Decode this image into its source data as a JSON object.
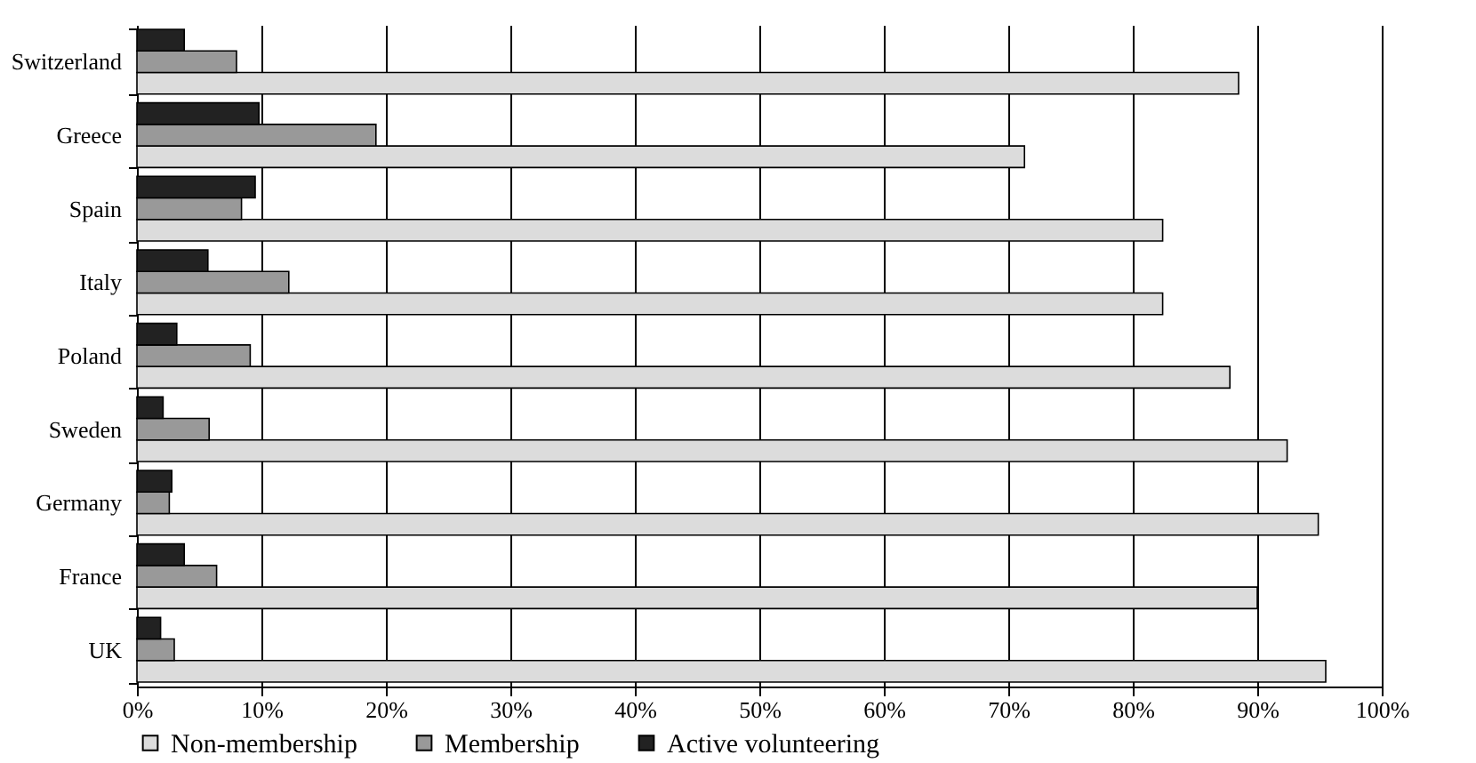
{
  "chart_data": {
    "type": "bar",
    "orientation": "horizontal",
    "categories": [
      "Switzerland",
      "Greece",
      "Spain",
      "Italy",
      "Poland",
      "Sweden",
      "Germany",
      "France",
      "UK"
    ],
    "series": [
      {
        "name": "Non-membership",
        "color": "#dcdcdc",
        "values": [
          88.5,
          71.3,
          82.4,
          82.4,
          87.8,
          92.4,
          94.9,
          90.0,
          95.5
        ]
      },
      {
        "name": "Membership",
        "color": "#999999",
        "values": [
          8.0,
          19.2,
          8.4,
          12.2,
          9.1,
          5.8,
          2.6,
          6.4,
          3.0
        ]
      },
      {
        "name": "Active volunteering",
        "color": "#222222",
        "values": [
          3.8,
          9.8,
          9.5,
          5.7,
          3.2,
          2.1,
          2.8,
          3.8,
          1.9
        ]
      }
    ],
    "xlim": [
      0,
      100
    ],
    "xticks": [
      {
        "value": 0,
        "label": "0%"
      },
      {
        "value": 10,
        "label": "10%"
      },
      {
        "value": 20,
        "label": "20%"
      },
      {
        "value": 30,
        "label": "30%"
      },
      {
        "value": 40,
        "label": "40%"
      },
      {
        "value": 50,
        "label": "50%"
      },
      {
        "value": 60,
        "label": "60%"
      },
      {
        "value": 70,
        "label": "70%"
      },
      {
        "value": 80,
        "label": "80%"
      },
      {
        "value": 90,
        "label": "90%"
      },
      {
        "value": 100,
        "label": "100%"
      }
    ],
    "grid": "x",
    "legend": "bottom"
  }
}
